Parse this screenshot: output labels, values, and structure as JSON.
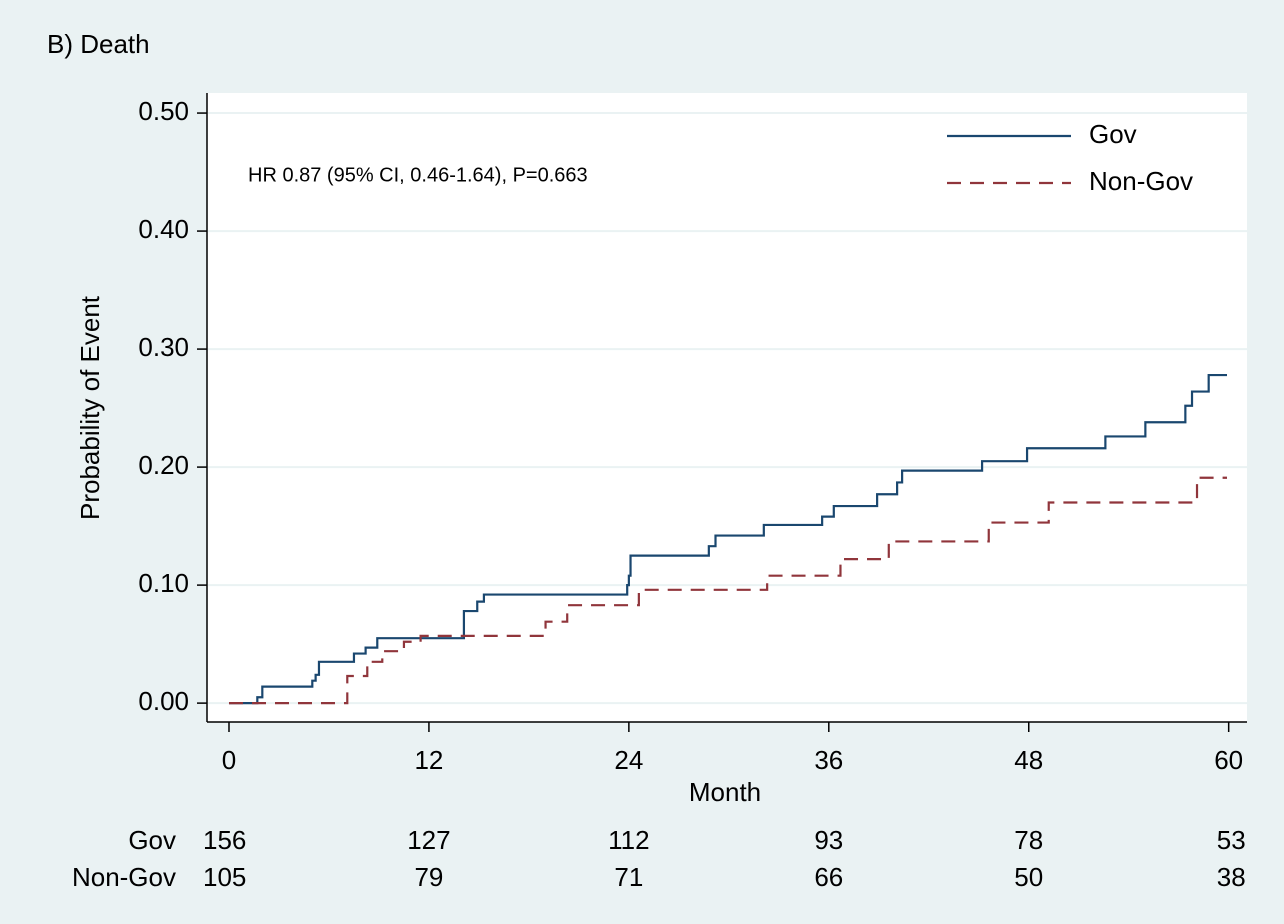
{
  "chart_data": {
    "type": "line",
    "step": "post",
    "title": "B) Death",
    "annotation": "HR 0.87 (95% CI, 0.46-1.64), P=0.663",
    "x_label": "Month",
    "y_label": "Probability of Event",
    "xlim": [
      -1.32,
      61.1
    ],
    "ylim": [
      -0.016,
      0.517
    ],
    "xticks": [
      0,
      12,
      24,
      36,
      48,
      60
    ],
    "yticks": [
      {
        "value": 0,
        "label": "0.00"
      },
      {
        "value": 0.1,
        "label": "0.10"
      },
      {
        "value": 0.2,
        "label": "0.20"
      },
      {
        "value": 0.3,
        "label": "0.30"
      },
      {
        "value": 0.4,
        "label": "0.40"
      },
      {
        "value": 0.5,
        "label": "0.50"
      }
    ],
    "grid": true,
    "legend": "top-right",
    "series": [
      {
        "name": "Gov",
        "color": "#1a476f",
        "line_style": "solid",
        "x": [
          0,
          1.7,
          2.0,
          5.0,
          5.2,
          5.4,
          7.5,
          8.2,
          8.9,
          14.1,
          14.9,
          15.3,
          23.9,
          24.0,
          24.1,
          28.8,
          29.2,
          32.1,
          35.6,
          36.3,
          38.9,
          40.1,
          40.4,
          45.2,
          47.9,
          52.6,
          55.0,
          57.4,
          57.8,
          58.8,
          59.9
        ],
        "y": [
          0,
          0.005,
          0.014,
          0.019,
          0.024,
          0.035,
          0.042,
          0.047,
          0.055,
          0.078,
          0.086,
          0.092,
          0.1,
          0.108,
          0.125,
          0.133,
          0.142,
          0.151,
          0.158,
          0.167,
          0.177,
          0.187,
          0.197,
          0.205,
          0.216,
          0.226,
          0.238,
          0.252,
          0.264,
          0.278,
          0.278
        ]
      },
      {
        "name": "Non-Gov",
        "color": "#90353b",
        "line_style": "dashed",
        "x": [
          0,
          7.1,
          8.3,
          9.2,
          10.5,
          11.5,
          19.0,
          20.3,
          24.6,
          32.3,
          36.7,
          39.6,
          45.6,
          49.2,
          58.1,
          59.9
        ],
        "y": [
          0,
          0.023,
          0.035,
          0.044,
          0.052,
          0.057,
          0.069,
          0.083,
          0.096,
          0.108,
          0.122,
          0.137,
          0.153,
          0.17,
          0.191,
          0.191
        ]
      }
    ],
    "at_risk": [
      {
        "name": "Gov",
        "values": [
          156,
          127,
          112,
          93,
          78,
          53
        ]
      },
      {
        "name": "Non-Gov",
        "values": [
          105,
          79,
          71,
          66,
          50,
          38
        ]
      }
    ]
  }
}
